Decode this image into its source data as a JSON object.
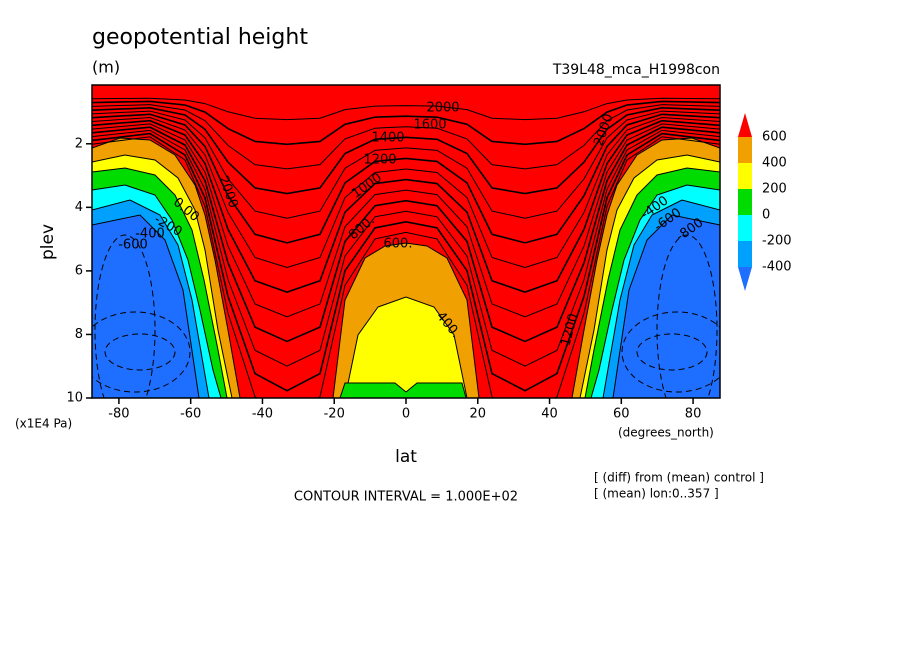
{
  "chart_data": {
    "type": "contour",
    "title": "geopotential height",
    "subtitle": "(m)",
    "run_label": "T39L48_mca_H1998con",
    "x_label": "lat",
    "y_label": "plev",
    "x_unit": "(degrees_north)",
    "y_unit": "(x1E4 Pa)",
    "xlim": [
      -87.5,
      87.5
    ],
    "xticks": [
      -80,
      -60,
      -40,
      -20,
      0,
      20,
      40,
      60,
      80
    ],
    "ylim": [
      10,
      0.15
    ],
    "yticks": [
      2,
      4,
      6,
      8,
      10
    ],
    "levels": [
      -400,
      -200,
      0,
      200,
      400,
      600
    ],
    "colors": [
      "#1e6eff",
      "#00a0ff",
      "#00ffff",
      "#00dc00",
      "#ffff00",
      "#f0a000",
      "#ff0000"
    ],
    "contour_labels": [
      "2000",
      "1600",
      "1400",
      "1200",
      "1000",
      "800.",
      "600.",
      "400.",
      "-200",
      "-400",
      "-600",
      "0.00",
      "2000",
      "2000",
      "1200",
      "-400",
      "-600",
      "-800"
    ],
    "annotation": "CONTOUR INTERVAL = 1.000E+02",
    "notes": [
      "[ (diff) from (mean) control ]",
      "[ (mean) lon:0..357 ]"
    ]
  }
}
